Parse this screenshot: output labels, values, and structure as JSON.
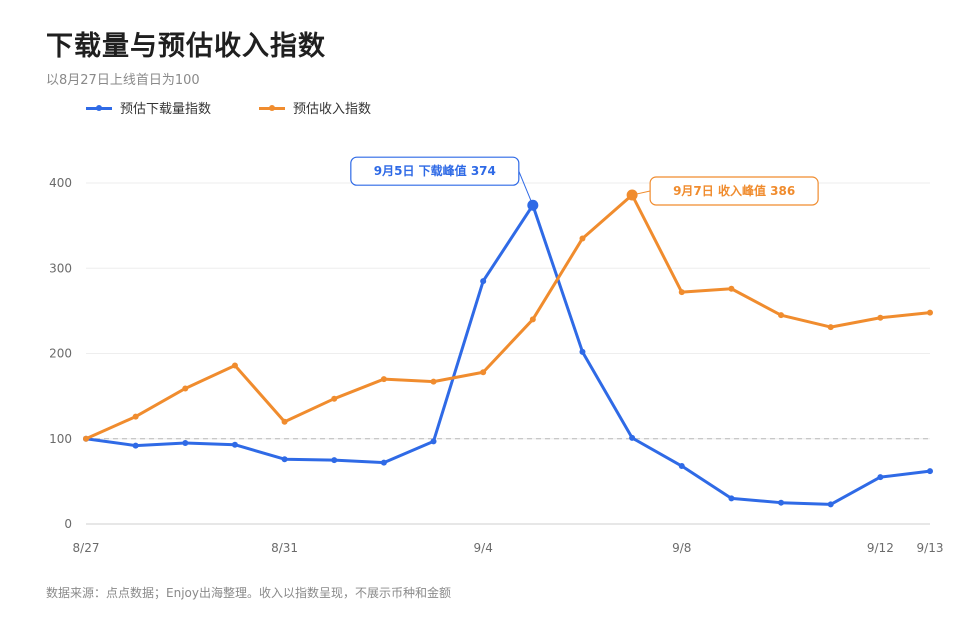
{
  "title": "下载量与预估收入指数",
  "subtitle": "以8月27日上线首日为100",
  "footer": "数据来源：点点数据；Enjoy出海整理。收入以指数呈现，不展示币种和金额",
  "colors": {
    "download": "#2f6ae6",
    "revenue": "#f08c2e",
    "grid": "#eeeeee",
    "baseline": "#b8b8b8"
  },
  "chart_data": {
    "type": "line",
    "categories": [
      "8/27",
      "8/28",
      "8/29",
      "8/30",
      "8/31",
      "9/1",
      "9/2",
      "9/3",
      "9/4",
      "9/5",
      "9/6",
      "9/7",
      "9/8",
      "9/9",
      "9/10",
      "9/11",
      "9/12",
      "9/13"
    ],
    "x_tick_labels": [
      "8/27",
      "8/31",
      "9/4",
      "9/8",
      "9/12",
      "9/13"
    ],
    "y_ticks": [
      0,
      100,
      200,
      300,
      400
    ],
    "ylim": [
      0,
      420
    ],
    "reference_line": 100,
    "grid": true,
    "legend_position": "top-left",
    "series": [
      {
        "name": "预估下载量指数",
        "color_key": "download",
        "values": [
          100,
          92,
          95,
          93,
          76,
          75,
          72,
          97,
          285,
          374,
          202,
          101,
          68,
          30,
          25,
          23,
          55,
          62
        ]
      },
      {
        "name": "预估收入指数",
        "color_key": "revenue",
        "values": [
          100,
          126,
          159,
          186,
          120,
          147,
          170,
          167,
          178,
          240,
          335,
          386,
          272,
          276,
          245,
          231,
          242,
          248
        ]
      }
    ],
    "annotations": [
      {
        "series": 0,
        "index": 9,
        "text": "9月5日 下载峰值 374"
      },
      {
        "series": 1,
        "index": 11,
        "text": "9月7日 收入峰值 386"
      }
    ]
  }
}
